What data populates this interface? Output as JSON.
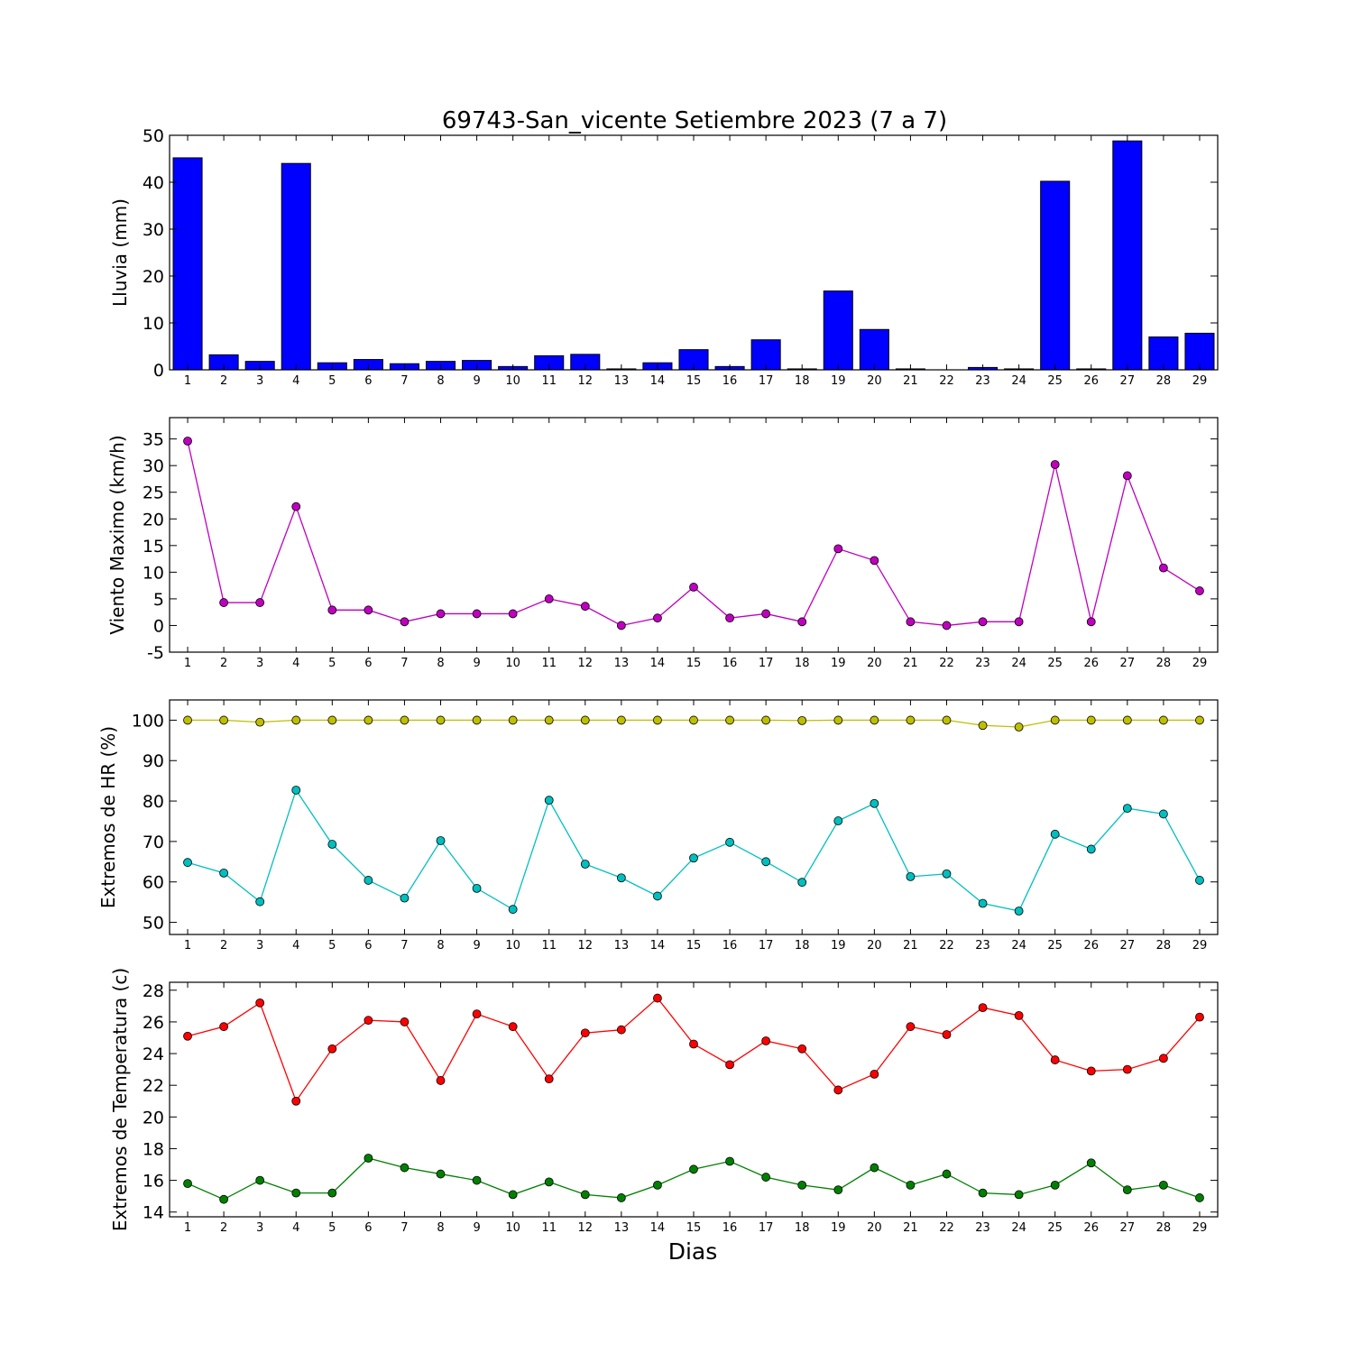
{
  "title": "69743-San_vicente Setiembre 2023  (7 a 7)",
  "xlabel": "Dias",
  "chart_data": [
    {
      "type": "bar",
      "ylabel": "Lluvia (mm)",
      "ylim": [
        0,
        50
      ],
      "yticks": [
        0,
        10,
        20,
        30,
        40,
        50
      ],
      "categories": [
        "1",
        "2",
        "3",
        "4",
        "5",
        "6",
        "7",
        "8",
        "9",
        "10",
        "11",
        "12",
        "13",
        "14",
        "15",
        "16",
        "17",
        "18",
        "19",
        "20",
        "21",
        "22",
        "23",
        "24",
        "25",
        "26",
        "27",
        "28",
        "29"
      ],
      "series": [
        {
          "color": "#0000ff",
          "values": [
            45.2,
            3.2,
            1.8,
            44.0,
            1.5,
            2.2,
            1.3,
            1.8,
            2.0,
            0.7,
            3.0,
            3.3,
            0.2,
            1.5,
            4.3,
            0.7,
            6.4,
            0.2,
            16.8,
            8.6,
            0.2,
            0.0,
            0.5,
            0.2,
            40.2,
            0.2,
            48.8,
            7.0,
            7.8
          ]
        }
      ]
    },
    {
      "type": "line",
      "ylabel": "Viento Maximo (km/h)",
      "ylim": [
        -5,
        39
      ],
      "yticks": [
        -5,
        0,
        5,
        10,
        15,
        20,
        25,
        30,
        35
      ],
      "categories": [
        "1",
        "2",
        "3",
        "4",
        "5",
        "6",
        "7",
        "8",
        "9",
        "10",
        "11",
        "12",
        "13",
        "14",
        "15",
        "16",
        "17",
        "18",
        "19",
        "20",
        "21",
        "22",
        "23",
        "24",
        "25",
        "26",
        "27",
        "28",
        "29"
      ],
      "series": [
        {
          "color": "#bf00bf",
          "values": [
            34.6,
            4.3,
            4.3,
            22.3,
            2.9,
            2.9,
            0.7,
            2.2,
            2.2,
            2.2,
            5.0,
            3.6,
            0.0,
            1.4,
            7.2,
            1.4,
            2.2,
            0.7,
            14.4,
            12.2,
            0.7,
            0.0,
            0.7,
            0.7,
            30.2,
            0.7,
            28.1,
            10.8,
            6.5
          ]
        }
      ]
    },
    {
      "type": "line",
      "ylabel": "Extremos de HR (%)",
      "ylim": [
        47,
        105
      ],
      "yticks": [
        50,
        60,
        70,
        80,
        90,
        100
      ],
      "categories": [
        "1",
        "2",
        "3",
        "4",
        "5",
        "6",
        "7",
        "8",
        "9",
        "10",
        "11",
        "12",
        "13",
        "14",
        "15",
        "16",
        "17",
        "18",
        "19",
        "20",
        "21",
        "22",
        "23",
        "24",
        "25",
        "26",
        "27",
        "28",
        "29"
      ],
      "series": [
        {
          "color": "#bfbf00",
          "values": [
            100,
            100,
            99.5,
            100,
            100,
            100,
            100,
            100,
            100,
            100,
            100,
            100,
            100,
            100,
            100,
            100,
            100,
            99.9,
            100,
            100,
            100,
            100,
            98.7,
            98.3,
            100,
            100,
            100,
            100,
            100
          ]
        },
        {
          "color": "#00bfbf",
          "values": [
            64.8,
            62.2,
            55.1,
            82.7,
            69.3,
            60.4,
            56.0,
            70.2,
            58.4,
            53.2,
            80.2,
            64.4,
            61.0,
            56.5,
            65.9,
            69.8,
            65.0,
            59.9,
            75.1,
            79.4,
            61.3,
            62.0,
            54.7,
            52.8,
            71.8,
            68.1,
            78.2,
            76.8,
            60.4
          ]
        }
      ]
    },
    {
      "type": "line",
      "ylabel": "Extremos de Temperatura (c)",
      "ylim": [
        13.7,
        28.5
      ],
      "yticks": [
        14,
        16,
        18,
        20,
        22,
        24,
        26,
        28
      ],
      "categories": [
        "1",
        "2",
        "3",
        "4",
        "5",
        "6",
        "7",
        "8",
        "9",
        "10",
        "11",
        "12",
        "13",
        "14",
        "15",
        "16",
        "17",
        "18",
        "19",
        "20",
        "21",
        "22",
        "23",
        "24",
        "25",
        "26",
        "27",
        "28",
        "29"
      ],
      "series": [
        {
          "color": "#ff0000",
          "values": [
            25.1,
            25.7,
            27.2,
            21.0,
            24.3,
            26.1,
            26.0,
            22.3,
            26.5,
            25.7,
            22.4,
            25.3,
            25.5,
            27.5,
            24.6,
            23.3,
            24.8,
            24.3,
            21.7,
            22.7,
            25.7,
            25.2,
            26.9,
            26.4,
            23.6,
            22.9,
            23.0,
            23.7,
            26.3
          ]
        },
        {
          "color": "#008000",
          "values": [
            15.8,
            14.8,
            16.0,
            15.2,
            15.2,
            17.4,
            16.8,
            16.4,
            16.0,
            15.1,
            15.9,
            15.1,
            14.9,
            15.7,
            16.7,
            17.2,
            16.2,
            15.7,
            15.4,
            16.8,
            15.7,
            16.4,
            15.2,
            15.1,
            15.7,
            17.1,
            15.4,
            15.7,
            14.9
          ]
        }
      ]
    }
  ]
}
